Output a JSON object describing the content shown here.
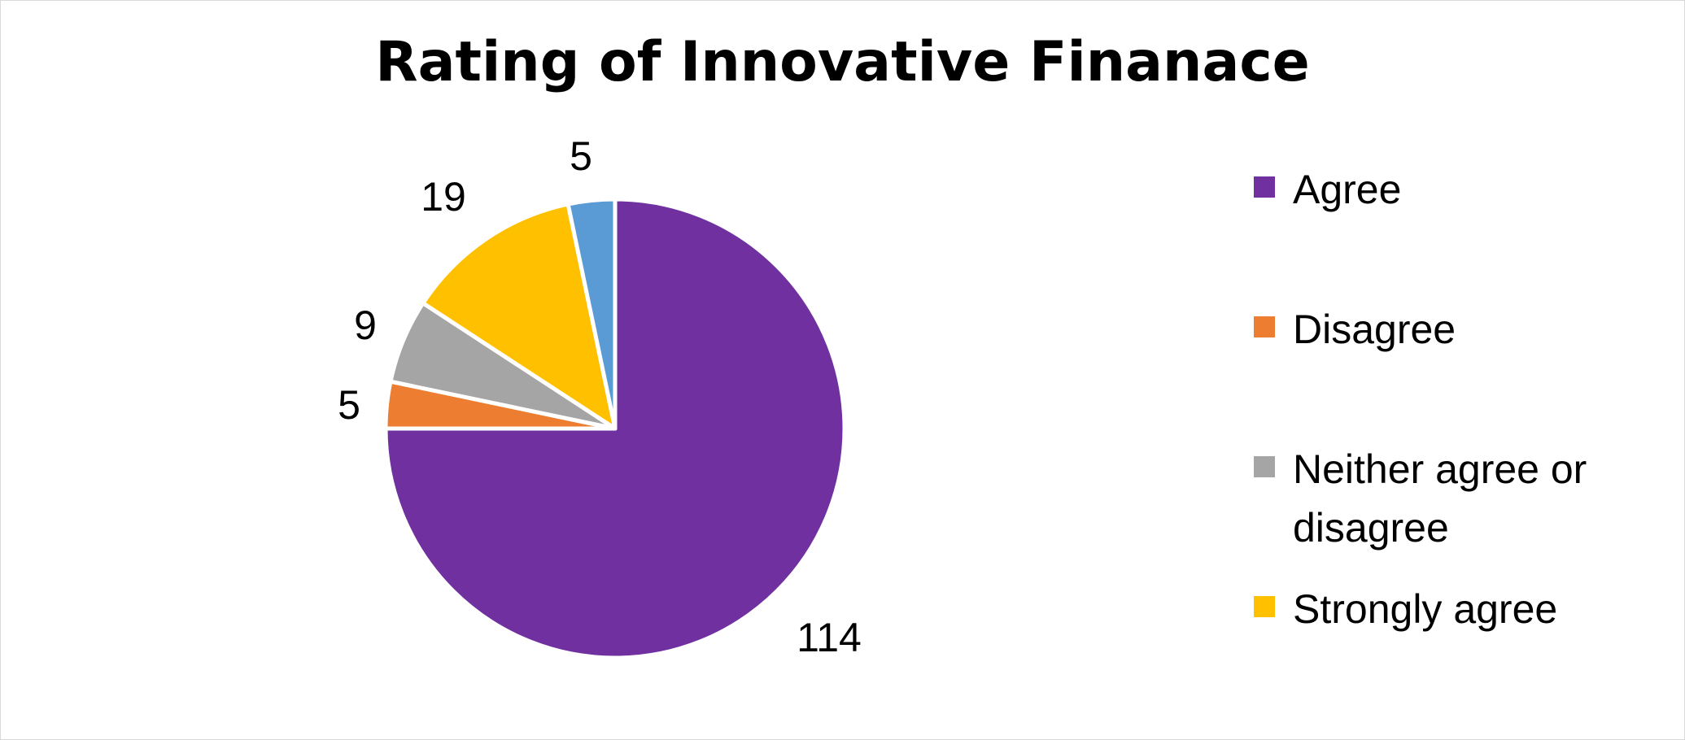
{
  "chart_data": {
    "type": "pie",
    "title": "Rating of Innovative Finanace",
    "categories": [
      "Agree",
      "Disagree",
      "Neither agree or disagree",
      "Strongly agree",
      ""
    ],
    "values": [
      114,
      5,
      9,
      19,
      5
    ],
    "colors": [
      "#7030a0",
      "#ed7d31",
      "#a5a5a5",
      "#ffc000",
      "#5b9bd5"
    ],
    "legend": {
      "position": "right",
      "entries": [
        "Agree",
        "Disagree",
        "Neither agree or disagree",
        "Strongly agree"
      ]
    },
    "data_labels": [
      "114",
      "5",
      "9",
      "19",
      "5"
    ],
    "start_angle": "12 o'clock",
    "direction": "clockwise"
  }
}
